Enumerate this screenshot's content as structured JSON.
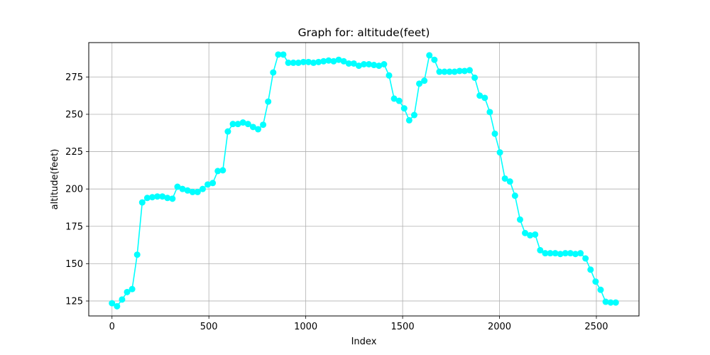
{
  "chart_data": {
    "type": "line",
    "title": "Graph for: altitude(feet)",
    "xlabel": "Index",
    "ylabel": "altitude(feet)",
    "xlim": [
      -120,
      2720
    ],
    "ylim": [
      115,
      298
    ],
    "xticks": [
      0,
      500,
      1000,
      1500,
      2000,
      2500
    ],
    "yticks": [
      125,
      150,
      175,
      200,
      225,
      250,
      275
    ],
    "grid": true,
    "color": "#00ffff",
    "series": [
      {
        "x": [
          0,
          26,
          52,
          78,
          104,
          130,
          156,
          182,
          208,
          234,
          260,
          286,
          312,
          338,
          364,
          390,
          416,
          442,
          468,
          494,
          520,
          546,
          572,
          598,
          624,
          650,
          676,
          702,
          728,
          754,
          780,
          806,
          832,
          858,
          884,
          910,
          936,
          962,
          988,
          1014,
          1040,
          1066,
          1092,
          1118,
          1144,
          1170,
          1196,
          1222,
          1248,
          1274,
          1300,
          1326,
          1352,
          1378,
          1404,
          1430,
          1456,
          1482,
          1508,
          1534,
          1560,
          1586,
          1612,
          1638,
          1664,
          1690,
          1716,
          1742,
          1768,
          1794,
          1820,
          1846,
          1872,
          1898,
          1924,
          1950,
          1976,
          2002,
          2028,
          2054,
          2080,
          2106,
          2132,
          2158,
          2184,
          2210,
          2236,
          2262,
          2288,
          2314,
          2340,
          2366,
          2392,
          2418,
          2444,
          2470,
          2496,
          2522,
          2548,
          2574,
          2600
        ],
        "y": [
          123.5,
          121.5,
          126,
          131,
          133,
          156,
          191,
          194,
          194.5,
          195,
          195,
          194,
          193.5,
          201.5,
          200,
          199,
          198,
          198,
          200,
          203,
          204,
          212,
          212.5,
          238.5,
          243.5,
          243.5,
          244.5,
          243.5,
          241.5,
          240,
          243,
          258.5,
          278,
          290,
          290,
          284.5,
          284.5,
          284.5,
          285,
          285,
          284.5,
          285,
          285.5,
          286,
          285.5,
          286.5,
          285.5,
          284,
          284,
          282.5,
          283.5,
          283.5,
          283,
          282.5,
          283.5,
          276,
          260.5,
          259,
          254,
          246,
          249.5,
          270.5,
          272.5,
          289.5,
          286.5,
          278.5,
          278.5,
          278.5,
          278.5,
          279,
          279,
          279.5,
          274.5,
          262.5,
          261,
          251.5,
          237,
          224.5,
          207,
          205,
          195.5,
          179.5,
          170.5,
          169,
          169.5,
          159,
          157,
          157,
          157,
          156.5,
          157,
          157,
          156.5,
          157,
          153.5,
          146,
          138,
          132.5,
          124.5,
          124,
          124
        ]
      }
    ]
  }
}
